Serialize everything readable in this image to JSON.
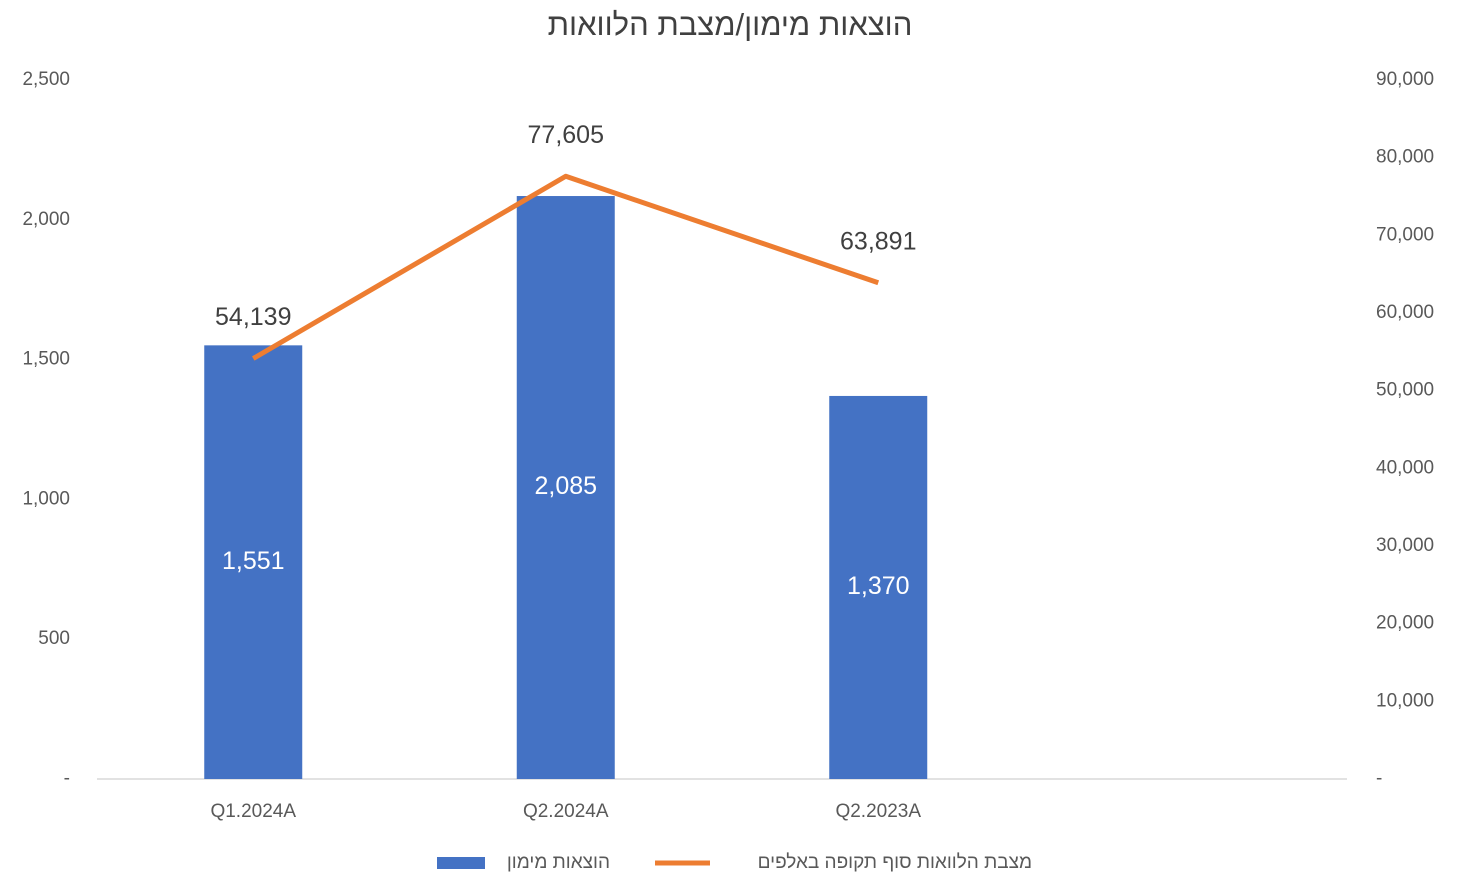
{
  "chart_data": {
    "type": "combo",
    "title": "הוצאות מימון/מצבת הלוואות",
    "categories": [
      "Q1.2024A",
      "Q2.2024A",
      "Q2.2023A",
      null
    ],
    "series": [
      {
        "name": "הוצאות מימון",
        "type": "bar",
        "color": "#4472c4",
        "axis": "y",
        "values": [
          1551,
          2085,
          1370,
          null
        ],
        "value_labels": [
          "1,551",
          "2,085",
          "1,370",
          null
        ]
      },
      {
        "name": "מצבת הלוואות סוף תקופה באלפים",
        "type": "line",
        "color": "#ed7d31",
        "axis": "y2",
        "values": [
          54139,
          77605,
          63891,
          null
        ],
        "value_labels": [
          "54,139",
          "77,605",
          "63,891",
          null
        ]
      }
    ],
    "ylim": [
      0,
      2500
    ],
    "yticks": [
      {
        "value": 0,
        "label": "-"
      },
      500,
      {
        "value": 1000,
        "label": "1,000"
      },
      {
        "value": 1500,
        "label": "1,500"
      },
      {
        "value": 2000,
        "label": "2,000"
      },
      {
        "value": 2500,
        "label": "2,500"
      }
    ],
    "y2lim": [
      0,
      90000
    ],
    "y2ticks": [
      {
        "value": 0,
        "label": "-"
      },
      {
        "value": 10000,
        "label": "10,000"
      },
      {
        "value": 20000,
        "label": "20,000"
      },
      {
        "value": 30000,
        "label": "30,000"
      },
      {
        "value": 40000,
        "label": "40,000"
      },
      {
        "value": 50000,
        "label": "50,000"
      },
      {
        "value": 60000,
        "label": "60,000"
      },
      {
        "value": 70000,
        "label": "70,000"
      },
      {
        "value": 80000,
        "label": "80,000"
      },
      {
        "value": 90000,
        "label": "90,000"
      }
    ],
    "grid": false,
    "legend": "bottom"
  }
}
